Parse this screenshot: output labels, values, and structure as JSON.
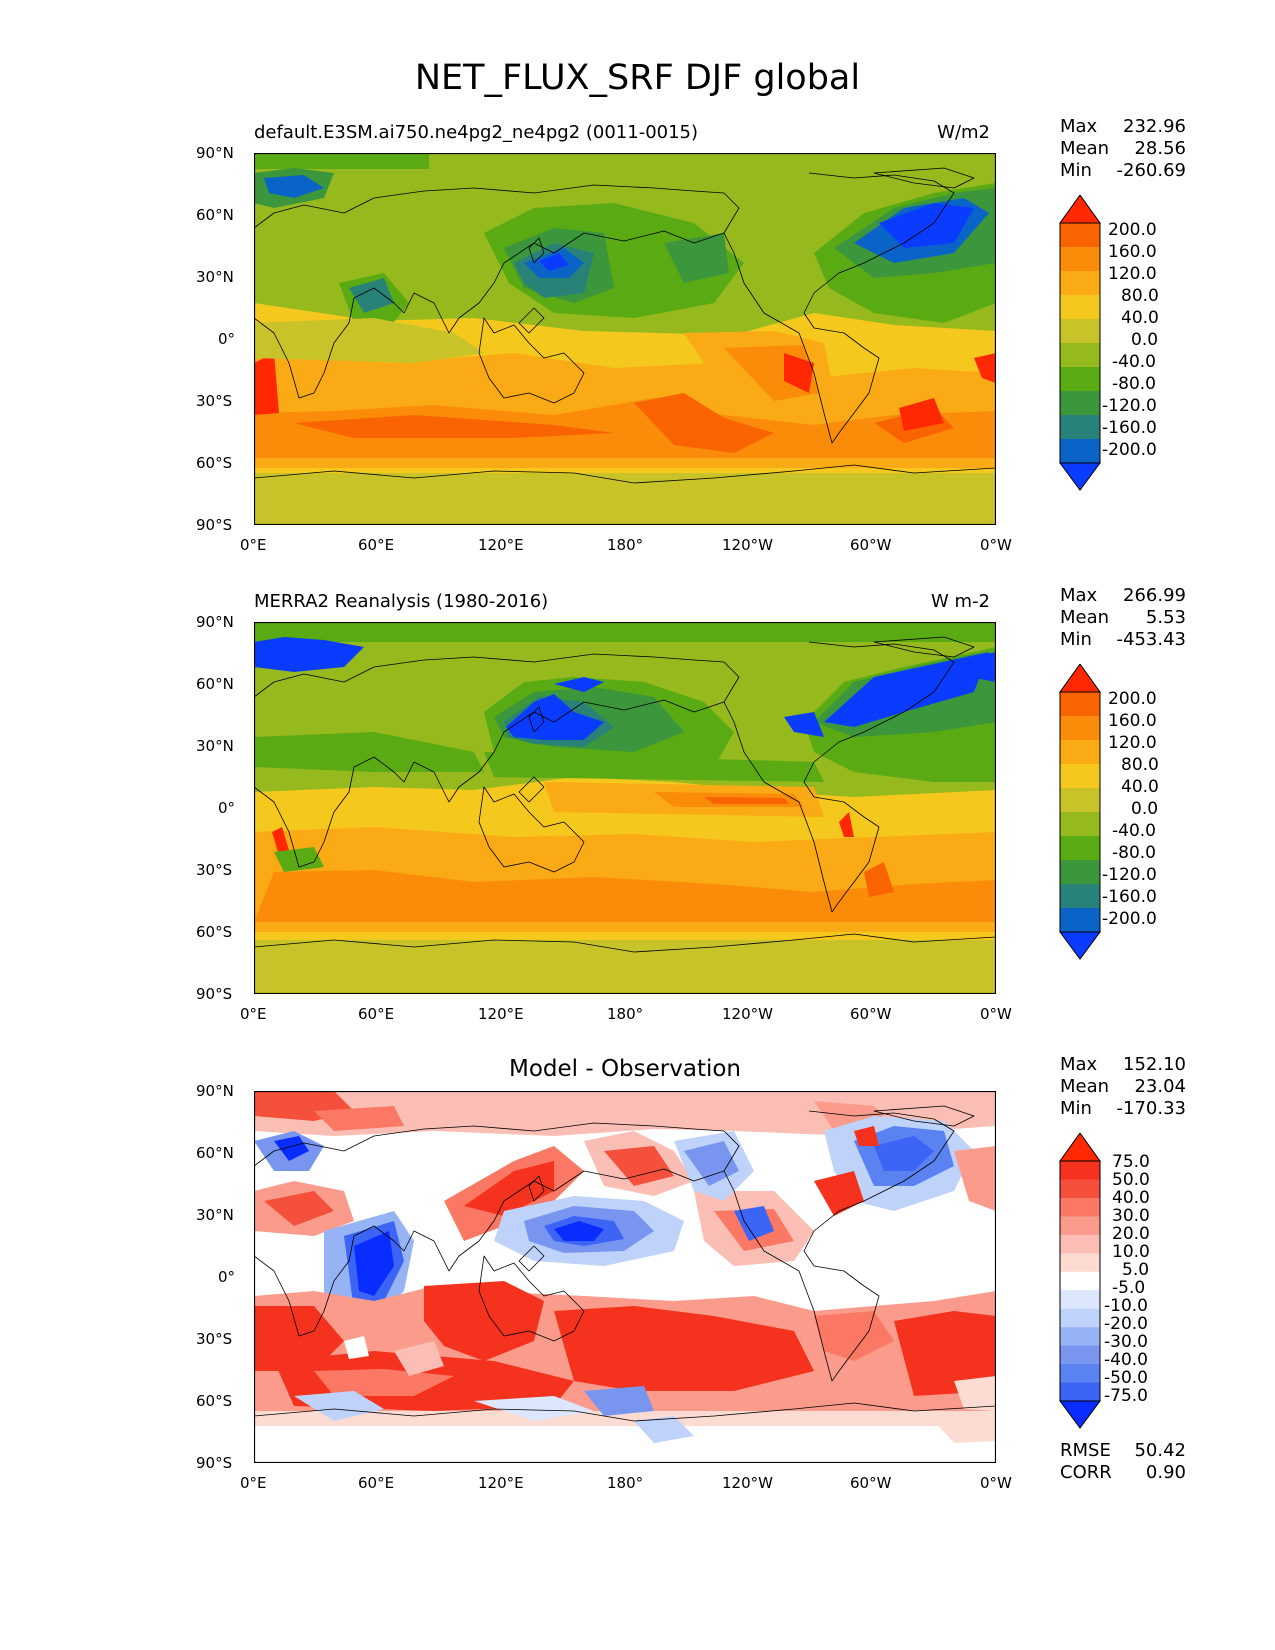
{
  "title": "NET_FLUX_SRF DJF global",
  "axes": {
    "lat_ticks": [
      "90°N",
      "60°N",
      "30°N",
      "0°",
      "30°S",
      "60°S",
      "90°S"
    ],
    "lon_ticks": [
      "0°E",
      "60°E",
      "120°E",
      "180°",
      "120°W",
      "60°W",
      "0°W"
    ]
  },
  "colors": {
    "flux_scale": [
      "#0a3cff",
      "#0a64c8",
      "#288278",
      "#3c963c",
      "#5aaa14",
      "#96b91e",
      "#c8c328",
      "#f5c81e",
      "#faaa14",
      "#fa8c0a",
      "#fa6400",
      "#ff2800"
    ],
    "diff_scale": [
      "#0a2dff",
      "#3c64f5",
      "#5a82f0",
      "#7896f0",
      "#96b4f5",
      "#bed2fa",
      "#dce6fc",
      "#ffffff",
      "#fcdcd2",
      "#fabeb4",
      "#fa9b8c",
      "#fa7864",
      "#f5503c",
      "#f5321e",
      "#ff2800"
    ]
  },
  "panels": [
    {
      "title": "default.E3SM.ai750.ne4pg2_ne4pg2 (0011-0015)",
      "units": "W/m2",
      "stats": [
        {
          "label": "Max",
          "value": "232.96"
        },
        {
          "label": "Mean",
          "value": "28.56"
        },
        {
          "label": "Min",
          "value": "-260.69"
        }
      ],
      "colorbar_labels": [
        "200.0",
        "160.0",
        "120.0",
        "80.0",
        "40.0",
        "0.0",
        "-40.0",
        "-80.0",
        "-120.0",
        "-160.0",
        "-200.0"
      ]
    },
    {
      "title": "MERRA2 Reanalysis (1980-2016)",
      "units": "W m-2",
      "stats": [
        {
          "label": "Max",
          "value": "266.99"
        },
        {
          "label": "Mean",
          "value": "5.53"
        },
        {
          "label": "Min",
          "value": "-453.43"
        }
      ],
      "colorbar_labels": [
        "200.0",
        "160.0",
        "120.0",
        "80.0",
        "40.0",
        "0.0",
        "-40.0",
        "-80.0",
        "-120.0",
        "-160.0",
        "-200.0"
      ]
    },
    {
      "title": "Model - Observation",
      "stats": [
        {
          "label": "Max",
          "value": "152.10"
        },
        {
          "label": "Mean",
          "value": "23.04"
        },
        {
          "label": "Min",
          "value": "-170.33"
        }
      ],
      "colorbar_labels": [
        "75.0",
        "50.0",
        "40.0",
        "30.0",
        "20.0",
        "10.0",
        "5.0",
        "-5.0",
        "-10.0",
        "-20.0",
        "-30.0",
        "-40.0",
        "-50.0",
        "-75.0"
      ],
      "metrics": [
        {
          "label": "RMSE",
          "value": "50.42"
        },
        {
          "label": "CORR",
          "value": "0.90"
        }
      ]
    }
  ]
}
